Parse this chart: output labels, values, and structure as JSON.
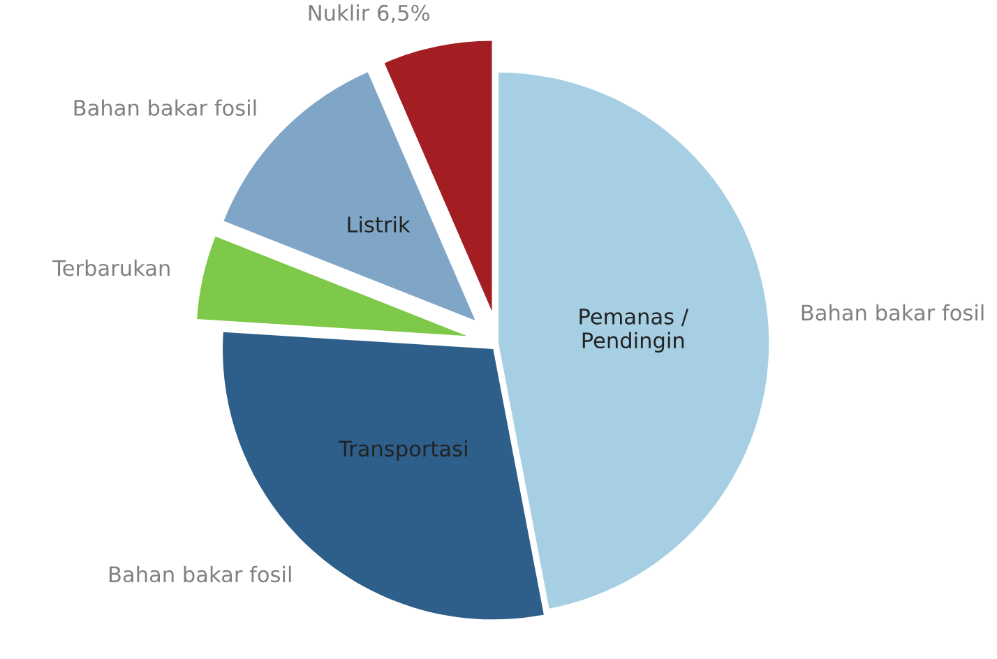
{
  "chart_data": {
    "type": "pie",
    "categories": [
      "Bahan bakar fosil",
      "Bahan bakar fosil",
      "Terbarukan",
      "Bahan bakar fosil",
      "Nuklir"
    ],
    "values": [
      47,
      29,
      5,
      12.5,
      6.5
    ],
    "value_labels": [
      null,
      null,
      null,
      null,
      "6,5%"
    ],
    "colors": [
      "#a6cfe3",
      "#2d5f8a",
      "#7ec84a",
      "#7fa5c7",
      "#a31e22"
    ],
    "annotations": [
      "Pemanas /\nPendingin",
      "Transportasi",
      "Listrik"
    ]
  }
}
